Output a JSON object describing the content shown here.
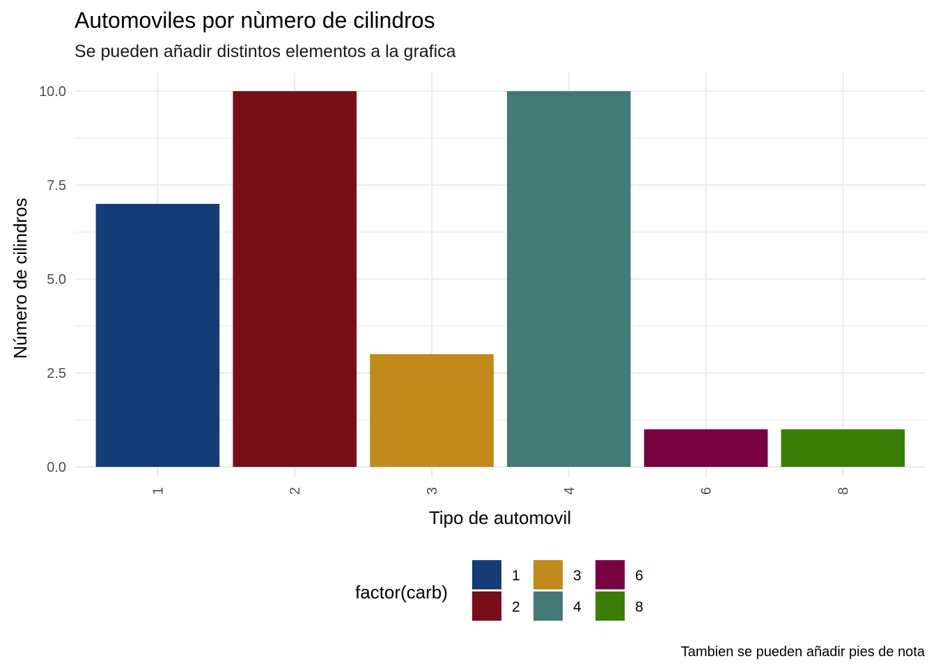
{
  "chart_data": {
    "type": "bar",
    "title": "Automoviles por nùmero de cilindros",
    "subtitle": "Se pueden añadir distintos elementos a la grafica",
    "xlabel": "Tipo de automovil",
    "ylabel": "Número de cilindros",
    "caption": "Tambien se pueden añadir pies de nota",
    "categories": [
      "1",
      "2",
      "3",
      "4",
      "6",
      "8"
    ],
    "values": [
      7,
      10,
      3,
      10,
      1,
      1
    ],
    "colors": [
      "#133c78",
      "#780f18",
      "#c18a1a",
      "#437a78",
      "#780041",
      "#3a7e06"
    ],
    "ylim": [
      0,
      10.5
    ],
    "y_ticks": [
      0,
      2.5,
      5,
      7.5,
      10
    ],
    "y_tick_labels": [
      "0.0",
      "2.5",
      "5.0",
      "7.5",
      "10.0"
    ],
    "grid": true,
    "legend": {
      "title": "factor(carb)",
      "placement": "bottom",
      "entries": [
        "1",
        "2",
        "3",
        "4",
        "6",
        "8"
      ]
    }
  }
}
